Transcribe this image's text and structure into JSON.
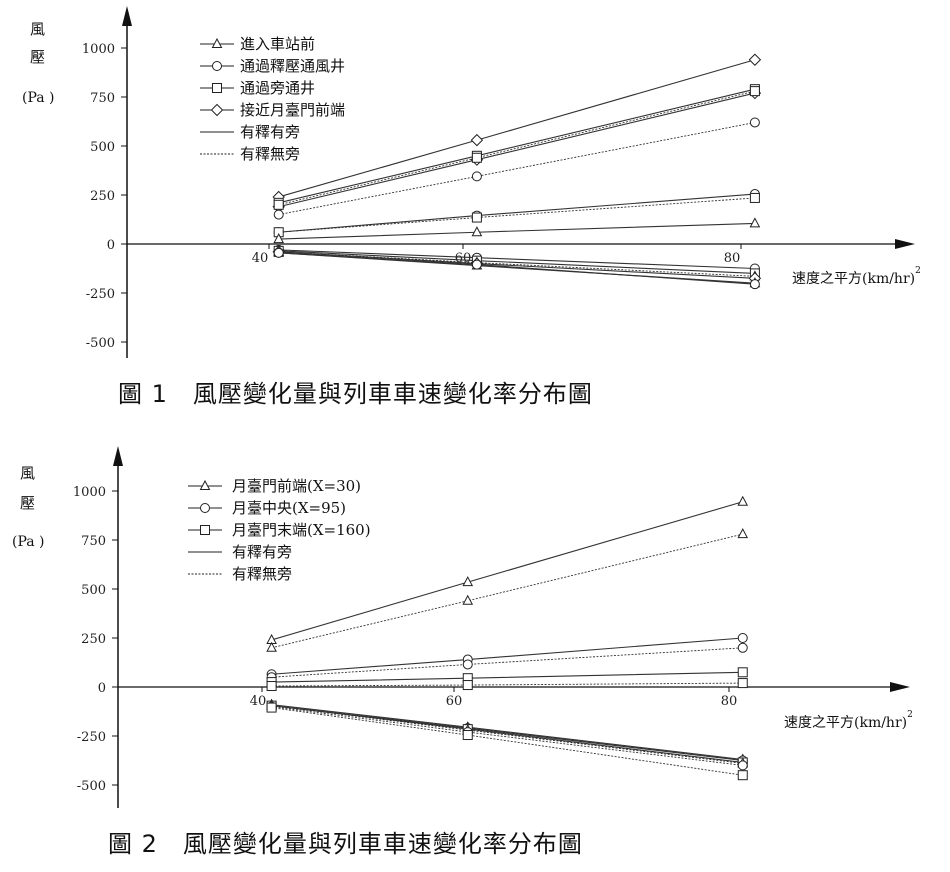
{
  "chart_data": [
    {
      "type": "line",
      "title": "圖 1　風壓變化量與列車車速變化率分布圖",
      "ylabel_line1": "風",
      "ylabel_line2": "壓",
      "yunit": "(Pa )",
      "xlabel": "速度之平方(km/hr)",
      "xlabel_sup": "2",
      "xlim": [
        40,
        80
      ],
      "ylim": [
        -500,
        1000
      ],
      "yticks": [
        1000,
        750,
        500,
        250,
        0,
        -250,
        -500
      ],
      "xticks": [
        40,
        60,
        80
      ],
      "x": [
        41,
        61,
        81
      ],
      "legend": {
        "position": "top-left",
        "entries": [
          {
            "label": "進入車站前",
            "marker": "triangle",
            "line": "solid"
          },
          {
            "label": "通過釋壓通風井",
            "marker": "circle",
            "line": "solid"
          },
          {
            "label": "通過旁通井",
            "marker": "square",
            "line": "solid"
          },
          {
            "label": "接近月臺門前端",
            "marker": "diamond",
            "line": "solid"
          },
          {
            "label": "有釋有旁",
            "marker": "none",
            "line": "solid"
          },
          {
            "label": "有釋無旁",
            "marker": "none",
            "line": "dotted"
          }
        ]
      },
      "series": [
        {
          "marker": "diamond",
          "line": "solid",
          "values": [
            240,
            530,
            940
          ]
        },
        {
          "marker": "diamond",
          "line": "solid",
          "values": [
            190,
            430,
            770
          ]
        },
        {
          "marker": "square",
          "line": "solid",
          "values": [
            210,
            450,
            790
          ]
        },
        {
          "marker": "square",
          "line": "dotted",
          "values": [
            200,
            440,
            780
          ]
        },
        {
          "marker": "circle",
          "line": "dotted",
          "values": [
            150,
            345,
            620
          ]
        },
        {
          "marker": "circle",
          "line": "solid",
          "values": [
            60,
            145,
            255
          ]
        },
        {
          "marker": "square",
          "line": "dotted",
          "values": [
            60,
            135,
            235
          ]
        },
        {
          "marker": "triangle",
          "line": "solid",
          "values": [
            25,
            60,
            105
          ]
        },
        {
          "marker": "circle",
          "line": "solid",
          "values": [
            -30,
            -70,
            -125
          ]
        },
        {
          "marker": "square",
          "line": "solid",
          "values": [
            -35,
            -85,
            -150
          ]
        },
        {
          "marker": "triangle",
          "line": "dotted",
          "values": [
            -40,
            -95,
            -165
          ]
        },
        {
          "marker": "diamond",
          "line": "solid",
          "values": [
            -40,
            -100,
            -175
          ]
        },
        {
          "marker": "triangle",
          "line": "solid",
          "values": [
            -45,
            -110,
            -200
          ]
        },
        {
          "marker": "circle",
          "line": "solid",
          "values": [
            -45,
            -105,
            -205
          ]
        }
      ]
    },
    {
      "type": "line",
      "title": "圖 2　風壓變化量與列車車速變化率分布圖",
      "ylabel_line1": "風",
      "ylabel_line2": "壓",
      "yunit": "(Pa )",
      "xlabel": "速度之平方(km/hr)",
      "xlabel_sup": "2",
      "xlim": [
        40,
        80
      ],
      "ylim": [
        -500,
        1000
      ],
      "yticks": [
        1000,
        750,
        500,
        250,
        0,
        -250,
        -500
      ],
      "xticks": [
        40,
        60,
        80
      ],
      "x": [
        41,
        61,
        81
      ],
      "legend": {
        "position": "top-left",
        "entries": [
          {
            "label": "月臺門前端(X=30)",
            "marker": "triangle",
            "line": "solid"
          },
          {
            "label": "月臺中央(X=95)",
            "marker": "circle",
            "line": "solid"
          },
          {
            "label": "月臺門末端(X=160)",
            "marker": "square",
            "line": "solid"
          },
          {
            "label": "有釋有旁",
            "marker": "none",
            "line": "solid"
          },
          {
            "label": "有釋無旁",
            "marker": "none",
            "line": "dotted"
          }
        ]
      },
      "series": [
        {
          "marker": "triangle",
          "line": "solid",
          "values": [
            240,
            535,
            945
          ]
        },
        {
          "marker": "triangle",
          "line": "dotted",
          "values": [
            200,
            440,
            780
          ]
        },
        {
          "marker": "circle",
          "line": "solid",
          "values": [
            65,
            140,
            250
          ]
        },
        {
          "marker": "circle",
          "line": "dotted",
          "values": [
            50,
            115,
            200
          ]
        },
        {
          "marker": "square",
          "line": "solid",
          "values": [
            25,
            45,
            75
          ]
        },
        {
          "marker": "square",
          "line": "dotted",
          "values": [
            5,
            10,
            20
          ]
        },
        {
          "marker": "triangle",
          "line": "solid",
          "values": [
            -90,
            -205,
            -370
          ]
        },
        {
          "marker": "circle",
          "line": "solid",
          "values": [
            -95,
            -210,
            -375
          ]
        },
        {
          "marker": "square",
          "line": "solid",
          "values": [
            -95,
            -215,
            -385
          ]
        },
        {
          "marker": "triangle",
          "line": "dotted",
          "values": [
            -95,
            -220,
            -390
          ]
        },
        {
          "marker": "circle",
          "line": "dotted",
          "values": [
            -100,
            -230,
            -400
          ]
        },
        {
          "marker": "square",
          "line": "dotted",
          "values": [
            -105,
            -245,
            -450
          ]
        }
      ]
    }
  ]
}
